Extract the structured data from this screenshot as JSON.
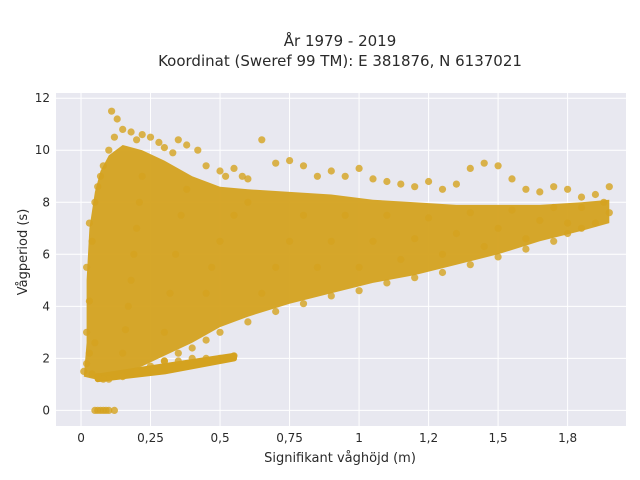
{
  "chart_data": {
    "type": "scatter",
    "title_line1": "År 1979 - 2019",
    "title_line2": "Koordinat (Sweref 99 TM): E 381876, N 6137021",
    "xlabel": "Signifikant våghöjd (m)",
    "ylabel": "Vågperiod (s)",
    "xlim": [
      -0.09,
      1.96
    ],
    "ylim": [
      -0.6,
      12.2
    ],
    "xticks": [
      {
        "value": 0,
        "label": "0"
      },
      {
        "value": 0.25,
        "label": "0,25"
      },
      {
        "value": 0.5,
        "label": "0,5"
      },
      {
        "value": 0.75,
        "label": "0,75"
      },
      {
        "value": 1,
        "label": "1"
      },
      {
        "value": 1.25,
        "label": "1,2"
      },
      {
        "value": 1.5,
        "label": "1,5"
      },
      {
        "value": 1.75,
        "label": "1,8"
      }
    ],
    "yticks": [
      {
        "value": 0,
        "label": "0"
      },
      {
        "value": 2,
        "label": "2"
      },
      {
        "value": 4,
        "label": "4"
      },
      {
        "value": 6,
        "label": "6"
      },
      {
        "value": 8,
        "label": "8"
      },
      {
        "value": 10,
        "label": "10"
      },
      {
        "value": 12,
        "label": "12"
      }
    ],
    "grid": true,
    "background_color": "#e8e8f0",
    "grid_color": "#ffffff",
    "marker_color": "#d4a21f",
    "series": [
      {
        "points": [
          [
            0.01,
            1.5
          ],
          [
            0.02,
            1.8
          ],
          [
            0.03,
            2.2
          ],
          [
            0.04,
            1.4
          ],
          [
            0.05,
            2.6
          ],
          [
            0.02,
            3.0
          ],
          [
            0.03,
            4.2
          ],
          [
            0.02,
            5.5
          ],
          [
            0.04,
            6.5
          ],
          [
            0.03,
            7.2
          ],
          [
            0.05,
            8.0
          ],
          [
            0.06,
            8.6
          ],
          [
            0.07,
            9.0
          ],
          [
            0.08,
            9.4
          ],
          [
            0.1,
            10.0
          ],
          [
            0.12,
            10.5
          ],
          [
            0.11,
            11.5
          ],
          [
            0.13,
            11.2
          ],
          [
            0.15,
            10.8
          ],
          [
            0.18,
            10.7
          ],
          [
            0.2,
            10.4
          ],
          [
            0.22,
            10.6
          ],
          [
            0.25,
            10.5
          ],
          [
            0.28,
            10.3
          ],
          [
            0.3,
            10.1
          ],
          [
            0.33,
            9.9
          ],
          [
            0.35,
            10.4
          ],
          [
            0.38,
            10.2
          ],
          [
            0.42,
            10.0
          ],
          [
            0.45,
            9.4
          ],
          [
            0.5,
            9.2
          ],
          [
            0.52,
            9.0
          ],
          [
            0.55,
            9.3
          ],
          [
            0.58,
            9.0
          ],
          [
            0.6,
            8.9
          ],
          [
            0.65,
            10.4
          ],
          [
            0.7,
            9.5
          ],
          [
            0.75,
            9.6
          ],
          [
            0.8,
            9.4
          ],
          [
            0.85,
            9.0
          ],
          [
            0.9,
            9.2
          ],
          [
            0.95,
            9.0
          ],
          [
            1.0,
            9.3
          ],
          [
            1.05,
            8.9
          ],
          [
            1.1,
            8.8
          ],
          [
            1.15,
            8.7
          ],
          [
            1.2,
            8.6
          ],
          [
            1.25,
            8.8
          ],
          [
            1.3,
            8.5
          ],
          [
            1.35,
            8.7
          ],
          [
            1.4,
            9.3
          ],
          [
            1.45,
            9.5
          ],
          [
            1.5,
            9.4
          ],
          [
            1.55,
            8.9
          ],
          [
            1.6,
            8.5
          ],
          [
            1.65,
            8.4
          ],
          [
            1.7,
            8.6
          ],
          [
            1.75,
            8.5
          ],
          [
            1.8,
            8.2
          ],
          [
            1.85,
            8.3
          ],
          [
            1.88,
            8.0
          ],
          [
            1.9,
            8.6
          ],
          [
            1.9,
            7.6
          ],
          [
            1.85,
            7.2
          ],
          [
            1.8,
            7.0
          ],
          [
            1.75,
            6.8
          ],
          [
            1.7,
            6.5
          ],
          [
            1.6,
            6.2
          ],
          [
            1.5,
            5.9
          ],
          [
            1.4,
            5.6
          ],
          [
            1.3,
            5.3
          ],
          [
            1.2,
            5.1
          ],
          [
            1.1,
            4.9
          ],
          [
            1.0,
            4.6
          ],
          [
            0.9,
            4.4
          ],
          [
            0.8,
            4.1
          ],
          [
            0.7,
            3.8
          ],
          [
            0.6,
            3.4
          ],
          [
            0.5,
            3.0
          ],
          [
            0.45,
            2.7
          ],
          [
            0.4,
            2.4
          ],
          [
            0.35,
            2.2
          ],
          [
            0.3,
            1.9
          ],
          [
            0.25,
            1.7
          ],
          [
            0.2,
            1.5
          ],
          [
            0.15,
            1.3
          ],
          [
            0.1,
            1.2
          ],
          [
            0.08,
            1.2
          ],
          [
            0.06,
            1.3
          ],
          [
            0.05,
            0
          ],
          [
            0.06,
            0
          ],
          [
            0.07,
            0
          ],
          [
            0.08,
            0
          ],
          [
            0.09,
            0
          ],
          [
            0.1,
            0
          ],
          [
            0.12,
            0
          ],
          [
            0.3,
            1.9
          ],
          [
            0.35,
            1.9
          ],
          [
            0.4,
            2.0
          ],
          [
            0.45,
            2.0
          ],
          [
            0.5,
            2.0
          ],
          [
            0.55,
            2.1
          ],
          [
            0.15,
            2.2
          ],
          [
            0.16,
            3.1
          ],
          [
            0.17,
            4.0
          ],
          [
            0.18,
            5.0
          ],
          [
            0.19,
            6.0
          ],
          [
            0.2,
            7.0
          ],
          [
            0.21,
            8.0
          ],
          [
            0.22,
            9.0
          ],
          [
            0.3,
            3.0
          ],
          [
            0.32,
            4.5
          ],
          [
            0.34,
            6.0
          ],
          [
            0.36,
            7.5
          ],
          [
            0.38,
            8.5
          ],
          [
            0.45,
            4.5
          ],
          [
            0.47,
            5.5
          ],
          [
            0.5,
            6.5
          ],
          [
            0.55,
            7.5
          ],
          [
            0.6,
            8.0
          ],
          [
            0.65,
            4.5
          ],
          [
            0.7,
            5.5
          ],
          [
            0.75,
            6.5
          ],
          [
            0.8,
            7.5
          ],
          [
            0.85,
            5.5
          ],
          [
            0.9,
            6.5
          ],
          [
            0.95,
            7.5
          ],
          [
            1.0,
            5.5
          ],
          [
            1.05,
            6.5
          ],
          [
            1.1,
            7.5
          ],
          [
            1.15,
            5.8
          ],
          [
            1.2,
            6.6
          ],
          [
            1.25,
            7.4
          ],
          [
            1.3,
            6.0
          ],
          [
            1.35,
            6.8
          ],
          [
            1.4,
            7.6
          ],
          [
            1.45,
            6.3
          ],
          [
            1.5,
            7.0
          ],
          [
            1.55,
            7.7
          ],
          [
            1.6,
            6.6
          ],
          [
            1.65,
            7.3
          ],
          [
            1.7,
            7.8
          ],
          [
            1.75,
            7.2
          ],
          [
            1.8,
            7.8
          ]
        ]
      }
    ]
  }
}
